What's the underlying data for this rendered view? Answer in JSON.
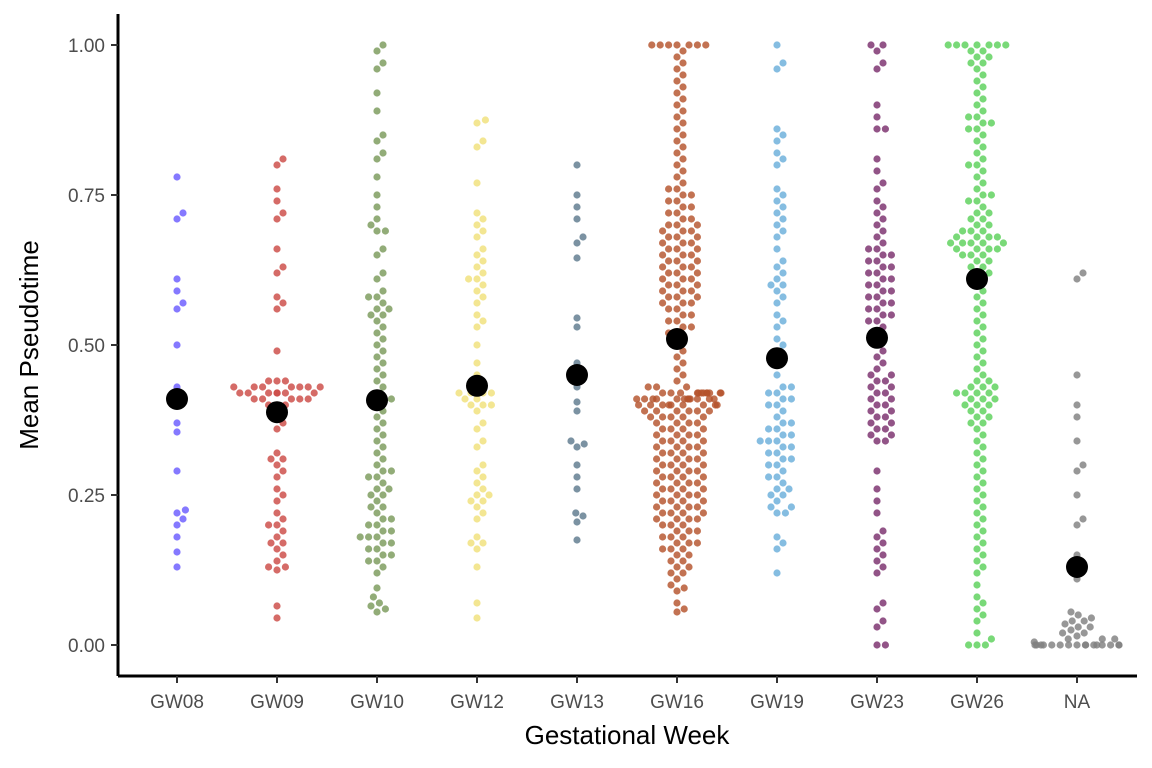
{
  "chart_data": {
    "type": "scatter",
    "subtype": "beeswarm",
    "xlabel": "Gestational Week",
    "ylabel": "Mean Pseudotime",
    "ylim": [
      0,
      1
    ],
    "y_ticks": [
      "0.00",
      "0.25",
      "0.50",
      "0.75",
      "1.00"
    ],
    "y_tick_values": [
      0,
      0.25,
      0.5,
      0.75,
      1.0
    ],
    "grid": false,
    "legend": "none",
    "mean_marker_color": "#000000",
    "categories": [
      "GW08",
      "GW09",
      "GW10",
      "GW12",
      "GW13",
      "GW16",
      "GW19",
      "GW23",
      "GW26",
      "NA"
    ],
    "series": [
      {
        "category": "GW08",
        "color": "#6a5cff",
        "mean": 0.41,
        "values": [
          0.78,
          0.72,
          0.71,
          0.61,
          0.59,
          0.57,
          0.56,
          0.5,
          0.43,
          0.41,
          0.41,
          0.4,
          0.37,
          0.355,
          0.29,
          0.225,
          0.22,
          0.21,
          0.2,
          0.18,
          0.155,
          0.13
        ]
      },
      {
        "category": "GW09",
        "color": "#cc4a46",
        "mean": 0.388,
        "values": [
          0.81,
          0.8,
          0.76,
          0.74,
          0.72,
          0.71,
          0.66,
          0.63,
          0.62,
          0.58,
          0.57,
          0.56,
          0.49,
          0.44,
          0.44,
          0.44,
          0.43,
          0.43,
          0.43,
          0.43,
          0.43,
          0.43,
          0.43,
          0.42,
          0.42,
          0.42,
          0.42,
          0.42,
          0.42,
          0.42,
          0.41,
          0.41,
          0.41,
          0.41,
          0.41,
          0.4,
          0.4,
          0.4,
          0.38,
          0.37,
          0.36,
          0.32,
          0.31,
          0.31,
          0.3,
          0.29,
          0.28,
          0.26,
          0.25,
          0.24,
          0.22,
          0.21,
          0.2,
          0.2,
          0.19,
          0.18,
          0.17,
          0.17,
          0.16,
          0.15,
          0.14,
          0.13,
          0.13,
          0.125,
          0.065,
          0.045
        ]
      },
      {
        "category": "GW10",
        "color": "#7a9a5a",
        "mean": 0.408,
        "values": [
          1.0,
          0.99,
          0.97,
          0.96,
          0.92,
          0.89,
          0.85,
          0.84,
          0.82,
          0.81,
          0.78,
          0.75,
          0.73,
          0.71,
          0.7,
          0.69,
          0.69,
          0.66,
          0.65,
          0.62,
          0.61,
          0.59,
          0.58,
          0.58,
          0.57,
          0.56,
          0.56,
          0.55,
          0.55,
          0.54,
          0.53,
          0.52,
          0.51,
          0.5,
          0.49,
          0.48,
          0.47,
          0.46,
          0.45,
          0.44,
          0.43,
          0.42,
          0.41,
          0.41,
          0.41,
          0.4,
          0.39,
          0.38,
          0.37,
          0.36,
          0.35,
          0.34,
          0.33,
          0.32,
          0.31,
          0.3,
          0.29,
          0.29,
          0.28,
          0.28,
          0.27,
          0.26,
          0.26,
          0.25,
          0.25,
          0.24,
          0.23,
          0.23,
          0.22,
          0.21,
          0.21,
          0.2,
          0.2,
          0.19,
          0.19,
          0.18,
          0.18,
          0.18,
          0.17,
          0.17,
          0.16,
          0.16,
          0.15,
          0.15,
          0.14,
          0.14,
          0.13,
          0.12,
          0.095,
          0.08,
          0.07,
          0.065,
          0.06,
          0.055
        ]
      },
      {
        "category": "GW12",
        "color": "#f0e07a",
        "mean": 0.432,
        "values": [
          0.875,
          0.87,
          0.84,
          0.83,
          0.77,
          0.72,
          0.71,
          0.7,
          0.69,
          0.68,
          0.66,
          0.65,
          0.64,
          0.63,
          0.62,
          0.61,
          0.61,
          0.6,
          0.59,
          0.58,
          0.57,
          0.55,
          0.54,
          0.53,
          0.5,
          0.47,
          0.45,
          0.43,
          0.42,
          0.42,
          0.42,
          0.42,
          0.41,
          0.41,
          0.4,
          0.4,
          0.4,
          0.39,
          0.37,
          0.36,
          0.34,
          0.33,
          0.3,
          0.29,
          0.28,
          0.27,
          0.26,
          0.25,
          0.25,
          0.24,
          0.24,
          0.23,
          0.22,
          0.21,
          0.18,
          0.17,
          0.17,
          0.16,
          0.13,
          0.07,
          0.045
        ]
      },
      {
        "category": "GW13",
        "color": "#5e7a8e",
        "mean": 0.45,
        "values": [
          0.8,
          0.75,
          0.73,
          0.71,
          0.68,
          0.67,
          0.645,
          0.545,
          0.53,
          0.47,
          0.45,
          0.43,
          0.405,
          0.39,
          0.34,
          0.335,
          0.33,
          0.3,
          0.28,
          0.26,
          0.22,
          0.215,
          0.205,
          0.175
        ]
      },
      {
        "category": "GW16",
        "color": "#b5532c",
        "mean": 0.51,
        "values": [
          1.0,
          1.0,
          1.0,
          1.0,
          1.0,
          1.0,
          1.0,
          0.99,
          0.98,
          0.97,
          0.96,
          0.95,
          0.94,
          0.93,
          0.92,
          0.91,
          0.9,
          0.89,
          0.88,
          0.87,
          0.86,
          0.85,
          0.84,
          0.83,
          0.82,
          0.81,
          0.8,
          0.79,
          0.78,
          0.77,
          0.76,
          0.76,
          0.75,
          0.75,
          0.74,
          0.74,
          0.73,
          0.73,
          0.72,
          0.72,
          0.71,
          0.71,
          0.7,
          0.7,
          0.7,
          0.69,
          0.69,
          0.69,
          0.68,
          0.68,
          0.68,
          0.67,
          0.67,
          0.67,
          0.66,
          0.66,
          0.66,
          0.65,
          0.65,
          0.65,
          0.64,
          0.64,
          0.64,
          0.63,
          0.63,
          0.63,
          0.62,
          0.62,
          0.62,
          0.61,
          0.61,
          0.61,
          0.6,
          0.6,
          0.6,
          0.59,
          0.59,
          0.59,
          0.58,
          0.58,
          0.58,
          0.57,
          0.57,
          0.57,
          0.56,
          0.56,
          0.55,
          0.55,
          0.54,
          0.54,
          0.53,
          0.53,
          0.52,
          0.52,
          0.51,
          0.5,
          0.49,
          0.48,
          0.47,
          0.46,
          0.45,
          0.44,
          0.43,
          0.43,
          0.43,
          0.42,
          0.42,
          0.42,
          0.42,
          0.42,
          0.42,
          0.42,
          0.42,
          0.42,
          0.42,
          0.42,
          0.42,
          0.41,
          0.41,
          0.41,
          0.41,
          0.41,
          0.41,
          0.41,
          0.41,
          0.41,
          0.41,
          0.41,
          0.41,
          0.4,
          0.4,
          0.4,
          0.4,
          0.4,
          0.4,
          0.4,
          0.4,
          0.4,
          0.39,
          0.39,
          0.39,
          0.39,
          0.39,
          0.39,
          0.38,
          0.38,
          0.38,
          0.38,
          0.38,
          0.37,
          0.37,
          0.37,
          0.37,
          0.36,
          0.36,
          0.36,
          0.36,
          0.35,
          0.35,
          0.35,
          0.35,
          0.34,
          0.34,
          0.34,
          0.34,
          0.33,
          0.33,
          0.33,
          0.33,
          0.32,
          0.32,
          0.32,
          0.32,
          0.31,
          0.31,
          0.31,
          0.31,
          0.3,
          0.3,
          0.3,
          0.3,
          0.29,
          0.29,
          0.29,
          0.29,
          0.28,
          0.28,
          0.28,
          0.28,
          0.27,
          0.27,
          0.27,
          0.27,
          0.26,
          0.26,
          0.26,
          0.26,
          0.25,
          0.25,
          0.25,
          0.25,
          0.24,
          0.24,
          0.24,
          0.24,
          0.23,
          0.23,
          0.23,
          0.23,
          0.22,
          0.22,
          0.22,
          0.22,
          0.21,
          0.21,
          0.21,
          0.21,
          0.2,
          0.2,
          0.2,
          0.19,
          0.19,
          0.19,
          0.18,
          0.18,
          0.18,
          0.17,
          0.17,
          0.17,
          0.16,
          0.16,
          0.16,
          0.15,
          0.15,
          0.14,
          0.14,
          0.13,
          0.13,
          0.12,
          0.12,
          0.11,
          0.1,
          0.095,
          0.09,
          0.07,
          0.06,
          0.055
        ]
      },
      {
        "category": "GW19",
        "color": "#6aaedb",
        "mean": 0.478,
        "values": [
          1.0,
          0.97,
          0.96,
          0.86,
          0.85,
          0.84,
          0.82,
          0.81,
          0.8,
          0.76,
          0.75,
          0.74,
          0.73,
          0.72,
          0.71,
          0.7,
          0.69,
          0.68,
          0.66,
          0.64,
          0.63,
          0.62,
          0.61,
          0.6,
          0.6,
          0.59,
          0.58,
          0.57,
          0.55,
          0.54,
          0.53,
          0.51,
          0.5,
          0.49,
          0.48,
          0.47,
          0.45,
          0.43,
          0.43,
          0.42,
          0.42,
          0.41,
          0.41,
          0.4,
          0.4,
          0.39,
          0.38,
          0.37,
          0.37,
          0.36,
          0.36,
          0.35,
          0.35,
          0.34,
          0.34,
          0.34,
          0.33,
          0.33,
          0.32,
          0.32,
          0.31,
          0.31,
          0.3,
          0.3,
          0.29,
          0.28,
          0.28,
          0.27,
          0.26,
          0.26,
          0.25,
          0.25,
          0.24,
          0.23,
          0.23,
          0.22,
          0.22,
          0.18,
          0.17,
          0.16,
          0.12
        ]
      },
      {
        "category": "GW23",
        "color": "#7a2e6c",
        "mean": 0.512,
        "values": [
          1.0,
          1.0,
          0.99,
          0.97,
          0.96,
          0.9,
          0.88,
          0.86,
          0.86,
          0.81,
          0.79,
          0.77,
          0.76,
          0.74,
          0.73,
          0.72,
          0.71,
          0.7,
          0.69,
          0.68,
          0.67,
          0.66,
          0.66,
          0.65,
          0.65,
          0.64,
          0.64,
          0.63,
          0.63,
          0.62,
          0.62,
          0.61,
          0.61,
          0.6,
          0.6,
          0.59,
          0.59,
          0.58,
          0.58,
          0.57,
          0.57,
          0.56,
          0.56,
          0.55,
          0.55,
          0.54,
          0.54,
          0.53,
          0.52,
          0.51,
          0.5,
          0.49,
          0.48,
          0.47,
          0.46,
          0.45,
          0.45,
          0.44,
          0.44,
          0.43,
          0.43,
          0.42,
          0.42,
          0.41,
          0.41,
          0.4,
          0.4,
          0.39,
          0.39,
          0.38,
          0.38,
          0.37,
          0.37,
          0.36,
          0.36,
          0.35,
          0.35,
          0.34,
          0.34,
          0.29,
          0.26,
          0.24,
          0.22,
          0.19,
          0.18,
          0.17,
          0.16,
          0.15,
          0.14,
          0.13,
          0.12,
          0.07,
          0.06,
          0.04,
          0.03,
          0.0,
          0.0
        ]
      },
      {
        "category": "GW26",
        "color": "#5bd15a",
        "mean": 0.61,
        "values": [
          1.0,
          1.0,
          1.0,
          1.0,
          1.0,
          1.0,
          1.0,
          0.99,
          0.99,
          0.98,
          0.98,
          0.97,
          0.97,
          0.96,
          0.95,
          0.94,
          0.93,
          0.92,
          0.91,
          0.9,
          0.89,
          0.88,
          0.88,
          0.87,
          0.87,
          0.86,
          0.86,
          0.85,
          0.84,
          0.83,
          0.82,
          0.81,
          0.8,
          0.8,
          0.79,
          0.78,
          0.77,
          0.76,
          0.75,
          0.75,
          0.74,
          0.74,
          0.73,
          0.72,
          0.72,
          0.71,
          0.71,
          0.7,
          0.7,
          0.69,
          0.69,
          0.69,
          0.68,
          0.68,
          0.68,
          0.68,
          0.67,
          0.67,
          0.67,
          0.67,
          0.67,
          0.66,
          0.66,
          0.66,
          0.66,
          0.65,
          0.65,
          0.65,
          0.64,
          0.64,
          0.63,
          0.63,
          0.62,
          0.62,
          0.61,
          0.61,
          0.6,
          0.59,
          0.58,
          0.57,
          0.56,
          0.55,
          0.54,
          0.53,
          0.52,
          0.51,
          0.5,
          0.49,
          0.48,
          0.47,
          0.46,
          0.45,
          0.44,
          0.44,
          0.43,
          0.43,
          0.43,
          0.42,
          0.42,
          0.42,
          0.42,
          0.41,
          0.41,
          0.41,
          0.4,
          0.4,
          0.4,
          0.39,
          0.39,
          0.38,
          0.38,
          0.37,
          0.37,
          0.36,
          0.35,
          0.34,
          0.33,
          0.32,
          0.31,
          0.3,
          0.29,
          0.28,
          0.27,
          0.26,
          0.25,
          0.24,
          0.23,
          0.22,
          0.21,
          0.2,
          0.19,
          0.18,
          0.17,
          0.16,
          0.15,
          0.14,
          0.13,
          0.12,
          0.1,
          0.08,
          0.07,
          0.06,
          0.05,
          0.04,
          0.02,
          0.01,
          0.0,
          0.0,
          0.0
        ]
      },
      {
        "category": "NA",
        "color": "#808080",
        "mean": 0.13,
        "values": [
          0.62,
          0.61,
          0.45,
          0.4,
          0.38,
          0.34,
          0.3,
          0.29,
          0.25,
          0.21,
          0.2,
          0.15,
          0.11,
          0.055,
          0.05,
          0.045,
          0.04,
          0.04,
          0.035,
          0.03,
          0.03,
          0.025,
          0.02,
          0.02,
          0.015,
          0.01,
          0.01,
          0.01,
          0.005,
          0.0,
          0.0,
          0.0,
          0.0,
          0.0,
          0.0,
          0.0,
          0.0,
          0.0,
          0.0,
          0.0,
          0.0,
          0.0,
          0.0,
          0.0,
          0.0
        ]
      }
    ]
  }
}
